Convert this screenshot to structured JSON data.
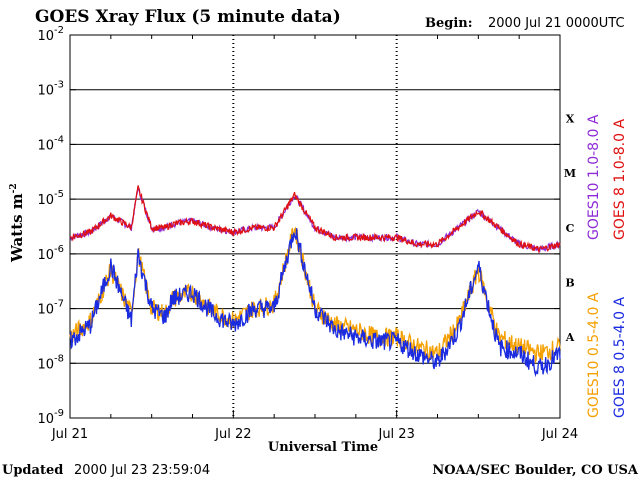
{
  "chart_data": {
    "type": "line",
    "title": "GOES Xray Flux (5 minute data)",
    "begin_label": "Begin:",
    "begin_value": "2000 Jul 21 0000UTC",
    "xlabel": "Universal Time",
    "ylabel": "Watts m",
    "ylabel_sup": "-2",
    "y_scale": "log",
    "ylim": [
      1e-09,
      0.01
    ],
    "x_ticks": [
      "Jul 21",
      "Jul 22",
      "Jul 23",
      "Jul 24"
    ],
    "y_ticks": [
      {
        "value": 0.01,
        "base": "10",
        "exp": "-2"
      },
      {
        "value": 0.001,
        "base": "10",
        "exp": "-3"
      },
      {
        "value": 0.0001,
        "base": "10",
        "exp": "-4"
      },
      {
        "value": 1e-05,
        "base": "10",
        "exp": "-5"
      },
      {
        "value": 1e-06,
        "base": "10",
        "exp": "-6"
      },
      {
        "value": 1e-07,
        "base": "10",
        "exp": "-7"
      },
      {
        "value": 1e-08,
        "base": "10",
        "exp": "-8"
      },
      {
        "value": 1e-09,
        "base": "10",
        "exp": "-9"
      }
    ],
    "flare_classes": [
      {
        "label": "X",
        "value": 0.0003
      },
      {
        "label": "M",
        "value": 3e-05
      },
      {
        "label": "C",
        "value": 3e-06
      },
      {
        "label": "B",
        "value": 3e-07
      },
      {
        "label": "A",
        "value": 3e-08
      }
    ],
    "hours": [
      0,
      3,
      6,
      9,
      10,
      12,
      14,
      15,
      18,
      21,
      24,
      27,
      30,
      33,
      36,
      39,
      42,
      45,
      48,
      51,
      54,
      57,
      60,
      63,
      66,
      69,
      72
    ],
    "series": [
      {
        "name": "GOES10 1.0-8.0 A",
        "color": "#8e2bd6",
        "values": [
          2e-06,
          2.5e-06,
          5e-06,
          3e-06,
          1.6e-05,
          3e-06,
          3e-06,
          3.5e-06,
          4e-06,
          3e-06,
          2.5e-06,
          3e-06,
          3e-06,
          1.2e-05,
          3e-06,
          2e-06,
          2e-06,
          2e-06,
          2e-06,
          1.5e-06,
          1.5e-06,
          3e-06,
          6e-06,
          3e-06,
          1.5e-06,
          1.2e-06,
          1.5e-06
        ]
      },
      {
        "name": "GOES 8 1.0-8.0 A",
        "color": "#e01010",
        "values": [
          2e-06,
          2.5e-06,
          5e-06,
          3e-06,
          1.6e-05,
          3e-06,
          3e-06,
          3.5e-06,
          4e-06,
          3e-06,
          2.5e-06,
          3e-06,
          3e-06,
          1.2e-05,
          3e-06,
          2e-06,
          2e-06,
          2e-06,
          2e-06,
          1.5e-06,
          1.5e-06,
          3e-06,
          6e-06,
          3e-06,
          1.5e-06,
          1.2e-06,
          1.5e-06
        ]
      },
      {
        "name": "GOES10 0.5-4.0 A",
        "color": "#f4a000",
        "values": [
          3e-08,
          6e-08,
          5e-07,
          8e-08,
          1e-06,
          1e-07,
          8e-08,
          1.5e-07,
          2e-07,
          9e-08,
          6e-08,
          1e-07,
          1.2e-07,
          3e-06,
          1e-07,
          5e-08,
          4e-08,
          3e-08,
          3e-08,
          2e-08,
          1.5e-08,
          5e-08,
          5e-07,
          3e-08,
          2e-08,
          1.5e-08,
          2e-08
        ]
      },
      {
        "name": "GOES 8 0.5-4.0 A",
        "color": "#1a2be0",
        "values": [
          2.5e-08,
          5e-08,
          6e-07,
          6e-08,
          1e-06,
          1e-07,
          7e-08,
          1.5e-07,
          2e-07,
          8e-08,
          5e-08,
          1e-07,
          1e-07,
          3e-06,
          1e-07,
          4e-08,
          3e-08,
          2.5e-08,
          2.5e-08,
          1.5e-08,
          1e-08,
          4e-08,
          6e-07,
          2e-08,
          1.5e-08,
          8e-09,
          1.5e-08
        ]
      }
    ]
  },
  "footer": {
    "updated_label": "Updated",
    "updated_value": "2000 Jul 23 23:59:04",
    "credit": "NOAA/SEC Boulder, CO USA"
  }
}
